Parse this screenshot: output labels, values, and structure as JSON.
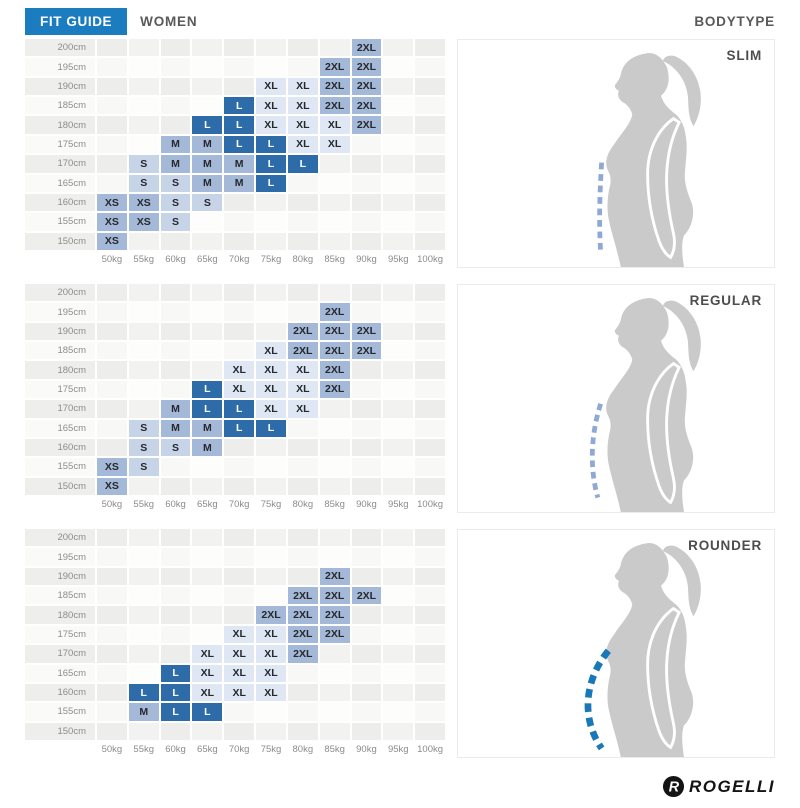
{
  "header": {
    "fit_guide": "FIT GUIDE",
    "gender": "WOMEN",
    "bodytype": "BODYTYPE"
  },
  "logo": {
    "text": "ROGELLI"
  },
  "colors": {
    "accent": "#1b7dc0",
    "dark": "#2d6ca8",
    "mid": "#a4b8d7",
    "light": "#c7d4e8",
    "xlight": "#dee7f3",
    "dash-light": "#8fa8d4",
    "dash-strong": "#1878b8",
    "sil": "#cacaca"
  },
  "size_classes": {
    "XS": "mid",
    "S": "light",
    "M": "mid",
    "L": "dark",
    "XL": "xlight",
    "2XL": "mid"
  },
  "chart_data": {
    "type": "heatmap",
    "title": "FIT GUIDE WOMEN",
    "x_categories": [
      "50kg",
      "55kg",
      "60kg",
      "65kg",
      "70kg",
      "75kg",
      "80kg",
      "85kg",
      "90kg",
      "95kg",
      "100kg"
    ],
    "y_categories": [
      "200cm",
      "195cm",
      "190cm",
      "185cm",
      "180cm",
      "175cm",
      "170cm",
      "165cm",
      "160cm",
      "155cm",
      "150cm"
    ],
    "legend_sizes": [
      "XS",
      "S",
      "M",
      "L",
      "XL",
      "2XL"
    ],
    "panels": [
      {
        "label": "SLIM",
        "dash": "light",
        "curve": "straight",
        "grid": [
          [
            "",
            "",
            "",
            "",
            "",
            "",
            "",
            "",
            "2XL",
            "",
            ""
          ],
          [
            "",
            "",
            "",
            "",
            "",
            "",
            "",
            "2XL",
            "2XL",
            "",
            ""
          ],
          [
            "",
            "",
            "",
            "",
            "",
            "XL",
            "XL",
            "2XL",
            "2XL",
            "",
            ""
          ],
          [
            "",
            "",
            "",
            "",
            "L",
            "XL",
            "XL",
            "2XL",
            "2XL",
            "",
            ""
          ],
          [
            "",
            "",
            "",
            "L",
            "L",
            "XL",
            "XL",
            "XL",
            "2XL",
            "",
            ""
          ],
          [
            "",
            "",
            "M",
            "M",
            "L",
            "L",
            "XL",
            "XL",
            "",
            "",
            ""
          ],
          [
            "",
            "S",
            "M",
            "M",
            "M",
            "L",
            "L",
            "",
            "",
            "",
            ""
          ],
          [
            "",
            "S",
            "S",
            "M",
            "M",
            "L",
            "",
            "",
            "",
            "",
            ""
          ],
          [
            "XS",
            "XS",
            "S",
            "S",
            "",
            "",
            "",
            "",
            "",
            "",
            ""
          ],
          [
            "XS",
            "XS",
            "S",
            "",
            "",
            "",
            "",
            "",
            "",
            "",
            ""
          ],
          [
            "XS",
            "",
            "",
            "",
            "",
            "",
            "",
            "",
            "",
            "",
            ""
          ]
        ]
      },
      {
        "label": "REGULAR",
        "dash": "light",
        "curve": "slight",
        "grid": [
          [
            "",
            "",
            "",
            "",
            "",
            "",
            "",
            "",
            "",
            "",
            ""
          ],
          [
            "",
            "",
            "",
            "",
            "",
            "",
            "",
            "2XL",
            "",
            "",
            ""
          ],
          [
            "",
            "",
            "",
            "",
            "",
            "",
            "2XL",
            "2XL",
            "2XL",
            "",
            ""
          ],
          [
            "",
            "",
            "",
            "",
            "",
            "XL",
            "2XL",
            "2XL",
            "2XL",
            "",
            ""
          ],
          [
            "",
            "",
            "",
            "",
            "XL",
            "XL",
            "XL",
            "2XL",
            "",
            "",
            ""
          ],
          [
            "",
            "",
            "",
            "L",
            "XL",
            "XL",
            "XL",
            "2XL",
            "",
            "",
            ""
          ],
          [
            "",
            "",
            "M",
            "L",
            "L",
            "XL",
            "XL",
            "",
            "",
            "",
            ""
          ],
          [
            "",
            "S",
            "M",
            "M",
            "L",
            "L",
            "",
            "",
            "",
            "",
            ""
          ],
          [
            "",
            "S",
            "S",
            "M",
            "",
            "",
            "",
            "",
            "",
            "",
            ""
          ],
          [
            "XS",
            "S",
            "",
            "",
            "",
            "",
            "",
            "",
            "",
            "",
            ""
          ],
          [
            "XS",
            "",
            "",
            "",
            "",
            "",
            "",
            "",
            "",
            "",
            ""
          ]
        ]
      },
      {
        "label": "ROUNDER",
        "dash": "strong",
        "curve": "round",
        "grid": [
          [
            "",
            "",
            "",
            "",
            "",
            "",
            "",
            "",
            "",
            "",
            ""
          ],
          [
            "",
            "",
            "",
            "",
            "",
            "",
            "",
            "",
            "",
            "",
            ""
          ],
          [
            "",
            "",
            "",
            "",
            "",
            "",
            "",
            "2XL",
            "",
            "",
            ""
          ],
          [
            "",
            "",
            "",
            "",
            "",
            "",
            "2XL",
            "2XL",
            "2XL",
            "",
            ""
          ],
          [
            "",
            "",
            "",
            "",
            "",
            "2XL",
            "2XL",
            "2XL",
            "",
            "",
            ""
          ],
          [
            "",
            "",
            "",
            "",
            "XL",
            "XL",
            "2XL",
            "2XL",
            "",
            "",
            ""
          ],
          [
            "",
            "",
            "",
            "XL",
            "XL",
            "XL",
            "2XL",
            "",
            "",
            "",
            ""
          ],
          [
            "",
            "",
            "L",
            "XL",
            "XL",
            "XL",
            "",
            "",
            "",
            "",
            ""
          ],
          [
            "",
            "L",
            "L",
            "XL",
            "XL",
            "XL",
            "",
            "",
            "",
            "",
            ""
          ],
          [
            "",
            "M",
            "L",
            "L",
            "",
            "",
            "",
            "",
            "",
            "",
            ""
          ],
          [
            "",
            "",
            "",
            "",
            "",
            "",
            "",
            "",
            "",
            "",
            ""
          ]
        ]
      }
    ]
  }
}
